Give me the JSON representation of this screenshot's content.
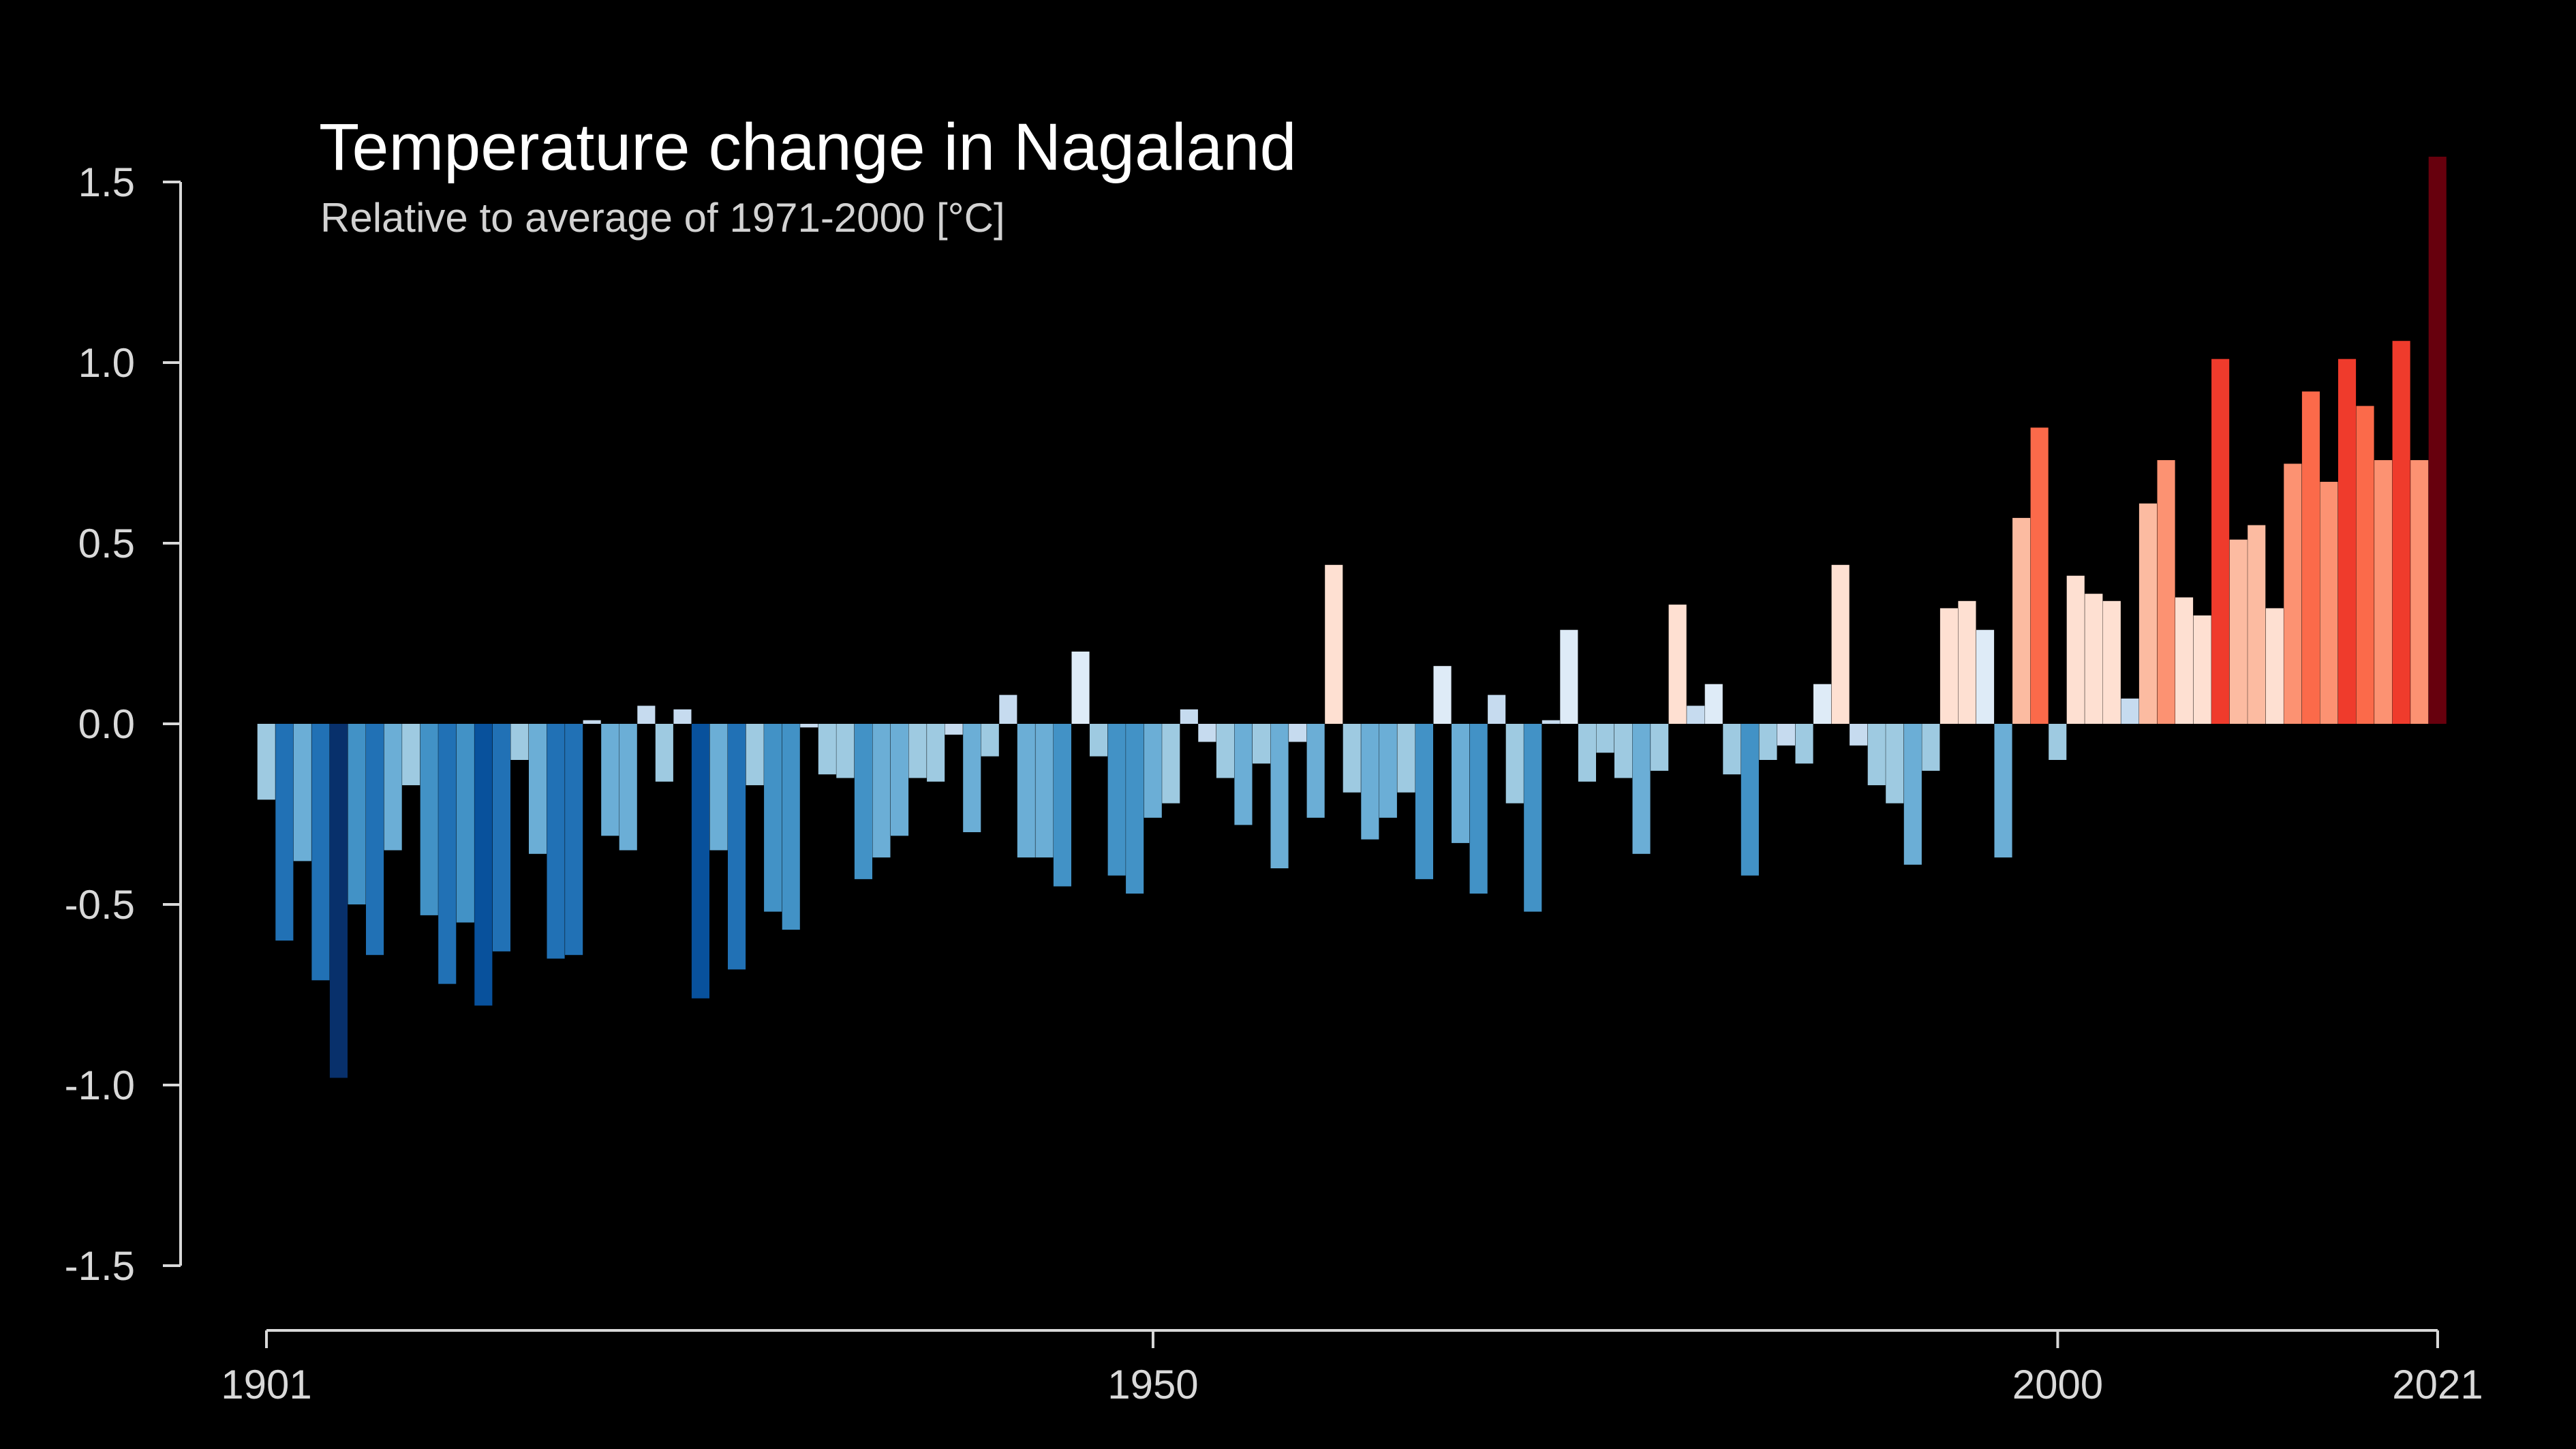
{
  "chart_data": {
    "type": "bar",
    "title": "Temperature change in Nagaland",
    "subtitle": "Relative to average of 1971-2000  [°C]",
    "xlabel": "",
    "ylabel": "",
    "ylim": [
      -1.5,
      1.5
    ],
    "yticks": [
      "1.5",
      "1.0",
      "0.5",
      "0.0",
      "-0.5",
      "-1.0",
      "-1.5"
    ],
    "ytick_values": [
      1.5,
      1.0,
      0.5,
      0.0,
      -0.5,
      -1.0,
      -1.5
    ],
    "xticks": [
      "1901",
      "1950",
      "2000",
      "2021"
    ],
    "xtick_values": [
      1901,
      1950,
      2000,
      2021
    ],
    "xlim": [
      1901,
      2021
    ],
    "grid": false,
    "legend": "none",
    "colors": {
      "background": "#000000",
      "axis": "#d9d9d9",
      "scale": [
        "#08306b",
        "#08519c",
        "#2171b5",
        "#4292c6",
        "#6baed6",
        "#9ecae1",
        "#c6dbef",
        "#deebf7",
        "#fee0d2",
        "#fcbba1",
        "#fc9272",
        "#fb6a4a",
        "#ef3b2c",
        "#cb181d",
        "#a50f15",
        "#67000d"
      ]
    },
    "years": [
      1901,
      1902,
      1903,
      1904,
      1905,
      1906,
      1907,
      1908,
      1909,
      1910,
      1911,
      1912,
      1913,
      1914,
      1915,
      1916,
      1917,
      1918,
      1919,
      1920,
      1921,
      1922,
      1923,
      1924,
      1925,
      1926,
      1927,
      1928,
      1929,
      1930,
      1931,
      1932,
      1933,
      1934,
      1935,
      1936,
      1937,
      1938,
      1939,
      1940,
      1941,
      1942,
      1943,
      1944,
      1945,
      1946,
      1947,
      1948,
      1949,
      1950,
      1951,
      1952,
      1953,
      1954,
      1955,
      1956,
      1957,
      1958,
      1959,
      1960,
      1961,
      1962,
      1963,
      1964,
      1965,
      1966,
      1967,
      1968,
      1969,
      1970,
      1971,
      1972,
      1973,
      1974,
      1975,
      1976,
      1977,
      1978,
      1979,
      1980,
      1981,
      1982,
      1983,
      1984,
      1985,
      1986,
      1987,
      1988,
      1989,
      1990,
      1991,
      1992,
      1993,
      1994,
      1995,
      1996,
      1997,
      1998,
      1999,
      2000,
      2001,
      2002,
      2003,
      2004,
      2005,
      2006,
      2007,
      2008,
      2009,
      2010,
      2011,
      2012,
      2013,
      2014,
      2015,
      2016,
      2017,
      2018,
      2019,
      2020,
      2021
    ],
    "values": [
      -0.21,
      -0.6,
      -0.38,
      -0.71,
      -0.98,
      -0.5,
      -0.64,
      -0.35,
      -0.17,
      -0.53,
      -0.72,
      -0.55,
      -0.78,
      -0.63,
      -0.1,
      -0.36,
      -0.65,
      -0.64,
      0.01,
      -0.31,
      -0.35,
      0.05,
      -0.16,
      0.04,
      -0.76,
      -0.35,
      -0.68,
      -0.17,
      -0.52,
      -0.57,
      -0.01,
      -0.14,
      -0.15,
      -0.43,
      -0.37,
      -0.31,
      -0.15,
      -0.16,
      -0.03,
      -0.3,
      -0.09,
      0.08,
      -0.37,
      -0.37,
      -0.45,
      0.2,
      -0.09,
      -0.42,
      -0.47,
      -0.26,
      -0.22,
      0.04,
      -0.05,
      -0.15,
      -0.28,
      -0.11,
      -0.4,
      -0.05,
      -0.26,
      0.44,
      -0.19,
      -0.32,
      -0.26,
      -0.19,
      -0.43,
      0.16,
      -0.33,
      -0.47,
      0.08,
      -0.22,
      -0.52,
      0.01,
      0.26,
      -0.16,
      -0.08,
      -0.15,
      -0.36,
      -0.13,
      0.33,
      0.05,
      0.11,
      -0.14,
      -0.42,
      -0.1,
      -0.06,
      -0.11,
      0.11,
      0.44,
      -0.06,
      -0.17,
      -0.22,
      -0.39,
      -0.13,
      0.32,
      0.34,
      0.26,
      -0.37,
      0.57,
      0.82,
      -0.1,
      0.41,
      0.36,
      0.34,
      0.07,
      0.61,
      0.73,
      0.35,
      0.3,
      1.01,
      0.51,
      0.55,
      0.32,
      0.72,
      0.92,
      0.67,
      1.01,
      0.88,
      0.73,
      1.06,
      0.73,
      1.57
    ]
  }
}
